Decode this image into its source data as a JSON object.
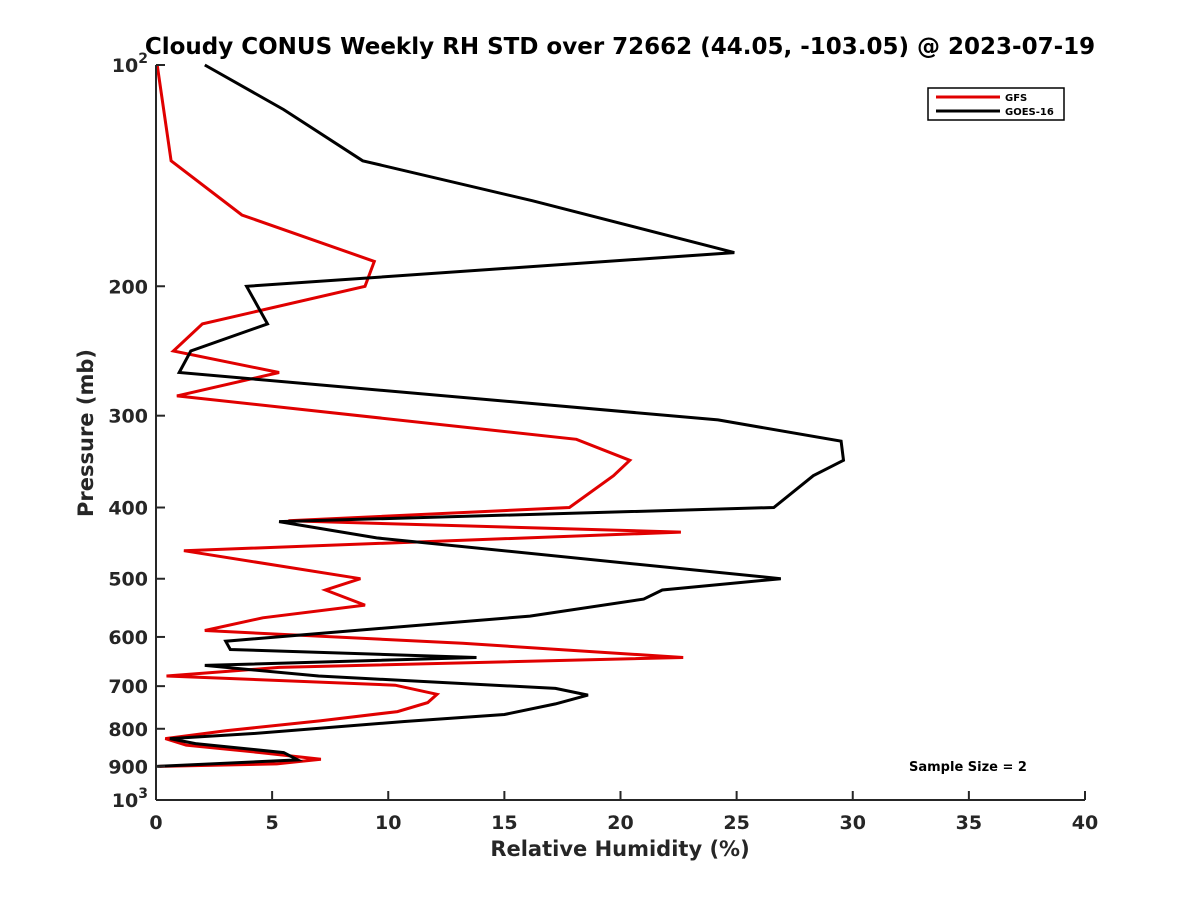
{
  "chart_data": {
    "type": "line",
    "title": "Cloudy CONUS Weekly RH STD over 72662 (44.05, -103.05) @ 2023-07-19",
    "xlabel": "Relative Humidity (%)",
    "ylabel": "Pressure (mb)",
    "xlim": [
      0,
      40
    ],
    "ylim": [
      100,
      1000
    ],
    "y_scale": "log",
    "y_reversed": true,
    "x_ticks": [
      0,
      5,
      10,
      15,
      20,
      25,
      30,
      35,
      40
    ],
    "x_tick_labels": [
      "0",
      "5",
      "10",
      "15",
      "20",
      "25",
      "30",
      "35",
      "40"
    ],
    "y_ticks": [
      100,
      200,
      300,
      400,
      500,
      600,
      700,
      800,
      900,
      1000
    ],
    "y_tick_labels": [
      {
        "base": "10",
        "exp": "2"
      },
      {
        "base": "200"
      },
      {
        "base": "300"
      },
      {
        "base": "400"
      },
      {
        "base": "500"
      },
      {
        "base": "600"
      },
      {
        "base": "700"
      },
      {
        "base": "800"
      },
      {
        "base": "900"
      },
      {
        "base": "10",
        "exp": "3"
      }
    ],
    "grid": false,
    "legend_position": "top-right",
    "annotation": "Sample Size = 2",
    "series": [
      {
        "name": "GFS",
        "color": "#e00000",
        "points": [
          {
            "x": 0.05,
            "p": 100
          },
          {
            "x": 0.65,
            "p": 135
          },
          {
            "x": 3.7,
            "p": 160
          },
          {
            "x": 9.4,
            "p": 185
          },
          {
            "x": 9.0,
            "p": 200
          },
          {
            "x": 2.0,
            "p": 225
          },
          {
            "x": 0.75,
            "p": 245
          },
          {
            "x": 5.3,
            "p": 262
          },
          {
            "x": 0.9,
            "p": 282
          },
          {
            "x": 18.1,
            "p": 323
          },
          {
            "x": 20.4,
            "p": 345
          },
          {
            "x": 19.7,
            "p": 362
          },
          {
            "x": 17.8,
            "p": 400
          },
          {
            "x": 5.7,
            "p": 417
          },
          {
            "x": 22.6,
            "p": 432
          },
          {
            "x": 1.2,
            "p": 458
          },
          {
            "x": 8.8,
            "p": 500
          },
          {
            "x": 7.3,
            "p": 518
          },
          {
            "x": 9.0,
            "p": 543
          },
          {
            "x": 4.6,
            "p": 565
          },
          {
            "x": 2.1,
            "p": 588
          },
          {
            "x": 13.2,
            "p": 612
          },
          {
            "x": 22.7,
            "p": 640
          },
          {
            "x": 5.3,
            "p": 660
          },
          {
            "x": 0.45,
            "p": 678
          },
          {
            "x": 10.3,
            "p": 698
          },
          {
            "x": 12.1,
            "p": 718
          },
          {
            "x": 11.7,
            "p": 737
          },
          {
            "x": 10.4,
            "p": 758
          },
          {
            "x": 7.1,
            "p": 780
          },
          {
            "x": 3.0,
            "p": 805
          },
          {
            "x": 0.4,
            "p": 825
          },
          {
            "x": 1.3,
            "p": 842
          },
          {
            "x": 4.5,
            "p": 862
          },
          {
            "x": 7.1,
            "p": 880
          },
          {
            "x": 5.2,
            "p": 893
          },
          {
            "x": 0.15,
            "p": 900
          }
        ]
      },
      {
        "name": "GOES-16",
        "color": "#000000",
        "points": [
          {
            "x": 2.1,
            "p": 100
          },
          {
            "x": 5.5,
            "p": 115
          },
          {
            "x": 8.9,
            "p": 135
          },
          {
            "x": 16.2,
            "p": 153
          },
          {
            "x": 24.9,
            "p": 180
          },
          {
            "x": 3.9,
            "p": 200
          },
          {
            "x": 4.8,
            "p": 225
          },
          {
            "x": 1.5,
            "p": 245
          },
          {
            "x": 1.0,
            "p": 262
          },
          {
            "x": 24.2,
            "p": 304
          },
          {
            "x": 29.5,
            "p": 325
          },
          {
            "x": 29.6,
            "p": 345
          },
          {
            "x": 28.3,
            "p": 362
          },
          {
            "x": 26.6,
            "p": 400
          },
          {
            "x": 5.3,
            "p": 418
          },
          {
            "x": 9.5,
            "p": 440
          },
          {
            "x": 26.9,
            "p": 500
          },
          {
            "x": 21.8,
            "p": 518
          },
          {
            "x": 21.0,
            "p": 533
          },
          {
            "x": 16.1,
            "p": 562
          },
          {
            "x": 3.0,
            "p": 608
          },
          {
            "x": 3.2,
            "p": 624
          },
          {
            "x": 13.8,
            "p": 640
          },
          {
            "x": 2.1,
            "p": 656
          },
          {
            "x": 7.0,
            "p": 678
          },
          {
            "x": 17.2,
            "p": 705
          },
          {
            "x": 18.6,
            "p": 720
          },
          {
            "x": 17.2,
            "p": 740
          },
          {
            "x": 15.0,
            "p": 765
          },
          {
            "x": 10.7,
            "p": 782
          },
          {
            "x": 4.2,
            "p": 812
          },
          {
            "x": 0.6,
            "p": 825
          },
          {
            "x": 1.7,
            "p": 838
          },
          {
            "x": 5.5,
            "p": 862
          },
          {
            "x": 6.1,
            "p": 882
          },
          {
            "x": 0.05,
            "p": 900
          }
        ]
      }
    ]
  }
}
